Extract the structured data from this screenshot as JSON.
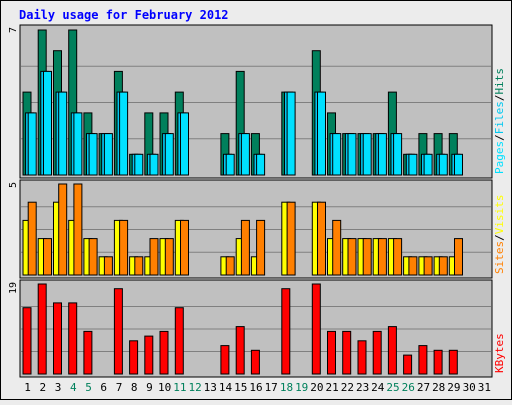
{
  "chart_data": {
    "type": "bar",
    "title": "Daily usage for February 2012",
    "categories": [
      "1",
      "2",
      "3",
      "4",
      "5",
      "6",
      "7",
      "8",
      "9",
      "10",
      "11",
      "12",
      "13",
      "14",
      "15",
      "16",
      "17",
      "18",
      "19",
      "20",
      "21",
      "22",
      "23",
      "24",
      "25",
      "26",
      "27",
      "28",
      "29",
      "30",
      "31"
    ],
    "weekend_days": [
      "4",
      "5",
      "11",
      "12",
      "18",
      "19",
      "25",
      "26"
    ],
    "panels": [
      {
        "id": "hits_files_pages",
        "ylim": [
          0,
          7
        ],
        "max_label": "7",
        "right_labels": [
          "Pages",
          "Files",
          "Hits"
        ],
        "series": [
          {
            "name": "Hits",
            "color": "#00805C",
            "values": [
              4,
              7,
              6,
              7,
              3,
              2,
              5,
              1,
              3,
              3,
              4,
              0,
              0,
              2,
              5,
              2,
              0,
              4,
              0,
              6,
              3,
              2,
              2,
              2,
              4,
              1,
              2,
              2,
              2,
              0,
              0
            ]
          },
          {
            "name": "Files",
            "color": "#00C8F0",
            "values": [
              3,
              5,
              4,
              3,
              2,
              2,
              4,
              1,
              1,
              2,
              3,
              0,
              0,
              1,
              2,
              1,
              0,
              4,
              0,
              4,
              2,
              2,
              2,
              2,
              2,
              1,
              1,
              1,
              1,
              0,
              0
            ]
          },
          {
            "name": "Pages",
            "color": "#00E0FF",
            "values": [
              3,
              5,
              4,
              3,
              2,
              2,
              4,
              1,
              1,
              2,
              3,
              0,
              0,
              1,
              2,
              1,
              0,
              4,
              0,
              4,
              2,
              2,
              2,
              2,
              2,
              1,
              1,
              1,
              1,
              0,
              0
            ]
          }
        ]
      },
      {
        "id": "visits_sites",
        "ylim": [
          0,
          5
        ],
        "max_label": "5",
        "right_labels": [
          "Sites",
          "Visits"
        ],
        "series": [
          {
            "name": "Visits",
            "color": "#FFFF00",
            "values": [
              3,
              2,
              4,
              3,
              2,
              1,
              3,
              1,
              1,
              2,
              3,
              0,
              0,
              1,
              2,
              1,
              0,
              4,
              0,
              4,
              2,
              2,
              2,
              2,
              2,
              1,
              1,
              1,
              1,
              0,
              0
            ]
          },
          {
            "name": "Sites",
            "color": "#FF8000",
            "values": [
              4,
              2,
              5,
              5,
              2,
              1,
              3,
              1,
              2,
              2,
              3,
              0,
              0,
              1,
              3,
              3,
              0,
              4,
              0,
              4,
              3,
              2,
              2,
              2,
              2,
              1,
              1,
              1,
              2,
              0,
              0
            ]
          }
        ]
      },
      {
        "id": "kbytes",
        "ylim": [
          0,
          19
        ],
        "max_label": "19",
        "right_labels": [
          "KBytes"
        ],
        "series": [
          {
            "name": "KBytes",
            "color": "#FF0000",
            "values": [
              14,
              19,
              15,
              15,
              9,
              0,
              18,
              7,
              8,
              9,
              14,
              0,
              0,
              6,
              10,
              5,
              0,
              18,
              0,
              19,
              9,
              9,
              7,
              9,
              10,
              4,
              6,
              5,
              5,
              0,
              0
            ]
          }
        ]
      }
    ],
    "colors": {
      "background": "#C0C0C0",
      "outer": "#ECECEC",
      "title": "#0000FF",
      "weekday_label": "#000000",
      "weekend_label": "#00805C",
      "grid": "#808080",
      "bar_outline": "#000000"
    }
  }
}
